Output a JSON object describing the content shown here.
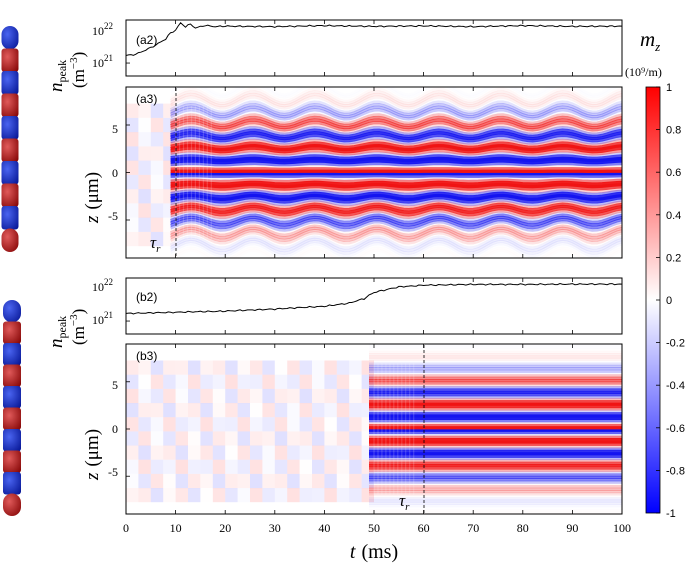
{
  "figure": {
    "colorbar": {
      "title_main": "m",
      "title_sub": "z",
      "units": "(10⁹/m)",
      "ticks": [
        "1",
        "0.8",
        "0.6",
        "0.4",
        "0.2",
        "0",
        "-0.2",
        "-0.4",
        "-0.6",
        "-0.8",
        "-1"
      ],
      "high_color": "#ff0000",
      "mid_color": "#ffffff",
      "low_color": "#0000ff"
    },
    "x_axis": {
      "label_var": "t",
      "label_unit": "(ms)",
      "ticks": [
        "0",
        "10",
        "20",
        "30",
        "40",
        "50",
        "60",
        "70",
        "80",
        "90",
        "100"
      ]
    },
    "npeak_ylabel": {
      "var": "n",
      "sub": "peak",
      "unit": "(m",
      "exp": "−3",
      "close": ")"
    },
    "z_ylabel": {
      "var": "z",
      "unit": "(μm)"
    },
    "panels": {
      "a2": {
        "tag": "(a2)",
        "ticks": [
          "10",
          "10"
        ],
        "exps": [
          "22",
          "21"
        ]
      },
      "a3": {
        "tag": "(a3)",
        "zticks": [
          "5",
          "0",
          "-5"
        ],
        "tau_var": "τ",
        "tau_sub": "r"
      },
      "b2": {
        "tag": "(b2)",
        "ticks": [
          "10",
          "10"
        ],
        "exps": [
          "22",
          "21"
        ]
      },
      "b3": {
        "tag": "(b3)",
        "zticks": [
          "5",
          "0",
          "-5"
        ],
        "tau_var": "τ",
        "tau_sub": "r"
      }
    }
  },
  "chart_data": [
    {
      "type": "line",
      "panel": "a2",
      "x": [
        0,
        2,
        4,
        6,
        8,
        9,
        10,
        11,
        12,
        13,
        14,
        16,
        18,
        20,
        30,
        40,
        50,
        60,
        70,
        80,
        90,
        100
      ],
      "y": [
        1.5e+21,
        1.6e+21,
        2e+21,
        2.6e+21,
        3.6e+21,
        5e+21,
        5.8e+21,
        8.5e+21,
        7e+21,
        8e+21,
        6.5e+21,
        7.5e+21,
        7e+21,
        7.2e+21,
        7e+21,
        7.4e+21,
        7.1e+21,
        7.3e+21,
        7e+21,
        7.4e+21,
        7.1e+21,
        7.2e+21
      ],
      "xlim": [
        0,
        100
      ],
      "ylim": [
        5e+20,
        1e+22
      ],
      "yscale": "log"
    },
    {
      "type": "heatmap",
      "panel": "a3",
      "xlim": [
        0,
        100
      ],
      "ylim": [
        -9,
        9
      ],
      "clim": [
        -1,
        1
      ],
      "onset_ms": 10,
      "tau_r_ms": 10,
      "stripe_period_um": 2.6,
      "oscillation_period_ms": 12.5
    },
    {
      "type": "line",
      "panel": "b2",
      "x": [
        0,
        10,
        20,
        30,
        40,
        45,
        48,
        50,
        52,
        55,
        60,
        70,
        80,
        90,
        100
      ],
      "y": [
        1.5e+21,
        1.6e+21,
        1.7e+21,
        1.9e+21,
        2.2e+21,
        2.6e+21,
        3.3e+21,
        4.6e+21,
        5.2e+21,
        6.2e+21,
        6.8e+21,
        7.1e+21,
        7.1e+21,
        7.2e+21,
        7.2e+21
      ],
      "xlim": [
        0,
        100
      ],
      "ylim": [
        5e+20,
        1e+22
      ],
      "yscale": "log"
    },
    {
      "type": "heatmap",
      "panel": "b3",
      "xlim": [
        0,
        100
      ],
      "ylim": [
        -9,
        9
      ],
      "clim": [
        -1,
        1
      ],
      "onset_ms": 50,
      "tau_r_ms": 60,
      "stripe_period_um": 2.6
    }
  ]
}
